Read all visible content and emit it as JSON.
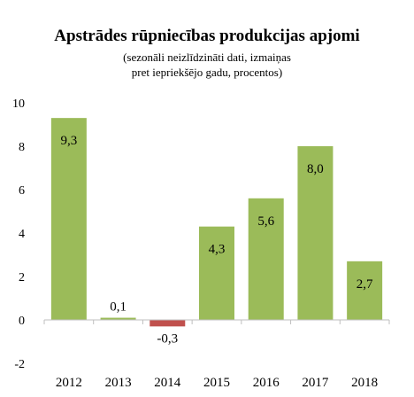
{
  "chart_data": {
    "type": "bar",
    "title": "Apstrādes rūpniecības produkcijas apjomi",
    "subtitle_line1": "(sezonāli neizlīdzināti dati, izmaiņas",
    "subtitle_line2": "pret iepriekšējo gadu, procentos)",
    "categories": [
      "2012",
      "2013",
      "2014",
      "2015",
      "2016",
      "2017",
      "2018"
    ],
    "values": [
      9.3,
      0.1,
      -0.3,
      4.3,
      5.6,
      8.0,
      2.7
    ],
    "value_labels": [
      "9,3",
      "0,1",
      "-0,3",
      "4,3",
      "5,6",
      "8,0",
      "2,7"
    ],
    "y_ticks": [
      "10",
      "8",
      "6",
      "4",
      "2",
      "0",
      "-2"
    ],
    "y_tick_values": [
      10,
      8,
      6,
      4,
      2,
      0,
      -2
    ],
    "ylim": [
      -2,
      10
    ],
    "xlabel": "",
    "ylabel": "",
    "grid": false,
    "legend": "none",
    "positive_color": "#9bbb59",
    "negative_color": "#c0504d"
  }
}
